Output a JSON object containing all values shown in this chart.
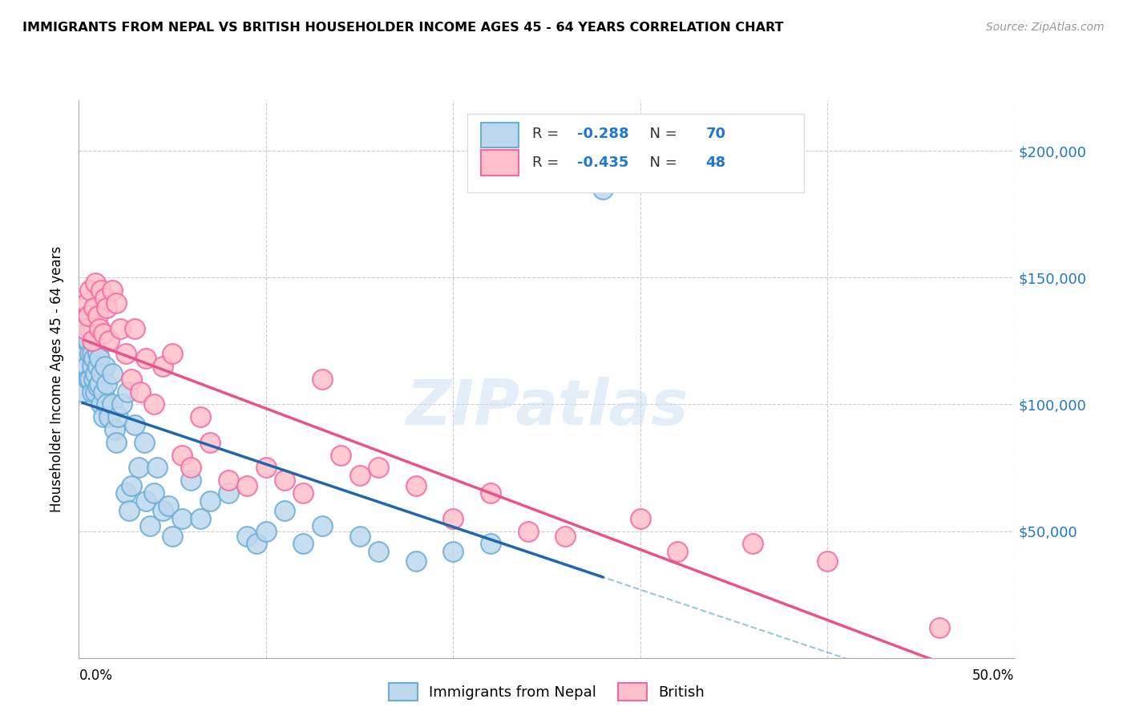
{
  "title": "IMMIGRANTS FROM NEPAL VS BRITISH HOUSEHOLDER INCOME AGES 45 - 64 YEARS CORRELATION CHART",
  "source": "Source: ZipAtlas.com",
  "ylabel": "Householder Income Ages 45 - 64 years",
  "legend_label1": "Immigrants from Nepal",
  "legend_label2": "British",
  "r1": "-0.288",
  "n1": "70",
  "r2": "-0.435",
  "n2": "48",
  "color_nepal": "#6baed6",
  "color_british": "#f768a1",
  "color_nepal_fill": "#bdd7ee",
  "color_british_fill": "#ffc0cb",
  "yticks": [
    0,
    50000,
    100000,
    150000,
    200000
  ],
  "xlim": [
    0.0,
    0.5
  ],
  "ylim": [
    0,
    220000
  ],
  "nepal_x": [
    0.002,
    0.003,
    0.003,
    0.004,
    0.004,
    0.005,
    0.005,
    0.005,
    0.006,
    0.006,
    0.006,
    0.007,
    0.007,
    0.007,
    0.008,
    0.008,
    0.008,
    0.009,
    0.009,
    0.009,
    0.01,
    0.01,
    0.01,
    0.011,
    0.011,
    0.012,
    0.012,
    0.013,
    0.013,
    0.014,
    0.015,
    0.015,
    0.016,
    0.018,
    0.018,
    0.019,
    0.02,
    0.021,
    0.023,
    0.025,
    0.026,
    0.027,
    0.028,
    0.03,
    0.032,
    0.035,
    0.036,
    0.038,
    0.04,
    0.042,
    0.045,
    0.048,
    0.05,
    0.055,
    0.06,
    0.065,
    0.07,
    0.08,
    0.09,
    0.095,
    0.1,
    0.11,
    0.12,
    0.13,
    0.15,
    0.16,
    0.18,
    0.2,
    0.22,
    0.28
  ],
  "nepal_y": [
    105000,
    120000,
    130000,
    125000,
    115000,
    135000,
    110000,
    125000,
    130000,
    120000,
    110000,
    115000,
    105000,
    120000,
    130000,
    118000,
    110000,
    105000,
    112000,
    125000,
    120000,
    107000,
    115000,
    108000,
    118000,
    112000,
    100000,
    95000,
    105000,
    115000,
    100000,
    108000,
    95000,
    100000,
    112000,
    90000,
    85000,
    95000,
    100000,
    65000,
    105000,
    58000,
    68000,
    92000,
    75000,
    85000,
    62000,
    52000,
    65000,
    75000,
    58000,
    60000,
    48000,
    55000,
    70000,
    55000,
    62000,
    65000,
    48000,
    45000,
    50000,
    58000,
    45000,
    52000,
    48000,
    42000,
    38000,
    42000,
    45000,
    185000
  ],
  "british_x": [
    0.003,
    0.004,
    0.005,
    0.006,
    0.007,
    0.008,
    0.009,
    0.01,
    0.011,
    0.012,
    0.013,
    0.014,
    0.015,
    0.016,
    0.018,
    0.02,
    0.022,
    0.025,
    0.028,
    0.03,
    0.033,
    0.036,
    0.04,
    0.045,
    0.05,
    0.055,
    0.06,
    0.065,
    0.07,
    0.08,
    0.09,
    0.1,
    0.11,
    0.12,
    0.13,
    0.14,
    0.15,
    0.16,
    0.18,
    0.2,
    0.22,
    0.24,
    0.26,
    0.3,
    0.32,
    0.36,
    0.4,
    0.46
  ],
  "british_y": [
    130000,
    140000,
    135000,
    145000,
    125000,
    138000,
    148000,
    135000,
    130000,
    145000,
    128000,
    142000,
    138000,
    125000,
    145000,
    140000,
    130000,
    120000,
    110000,
    130000,
    105000,
    118000,
    100000,
    115000,
    120000,
    80000,
    75000,
    95000,
    85000,
    70000,
    68000,
    75000,
    70000,
    65000,
    110000,
    80000,
    72000,
    75000,
    68000,
    55000,
    65000,
    50000,
    48000,
    55000,
    42000,
    45000,
    38000,
    12000
  ],
  "watermark": "ZIPatlas",
  "background_color": "#ffffff",
  "grid_color": "#cccccc"
}
